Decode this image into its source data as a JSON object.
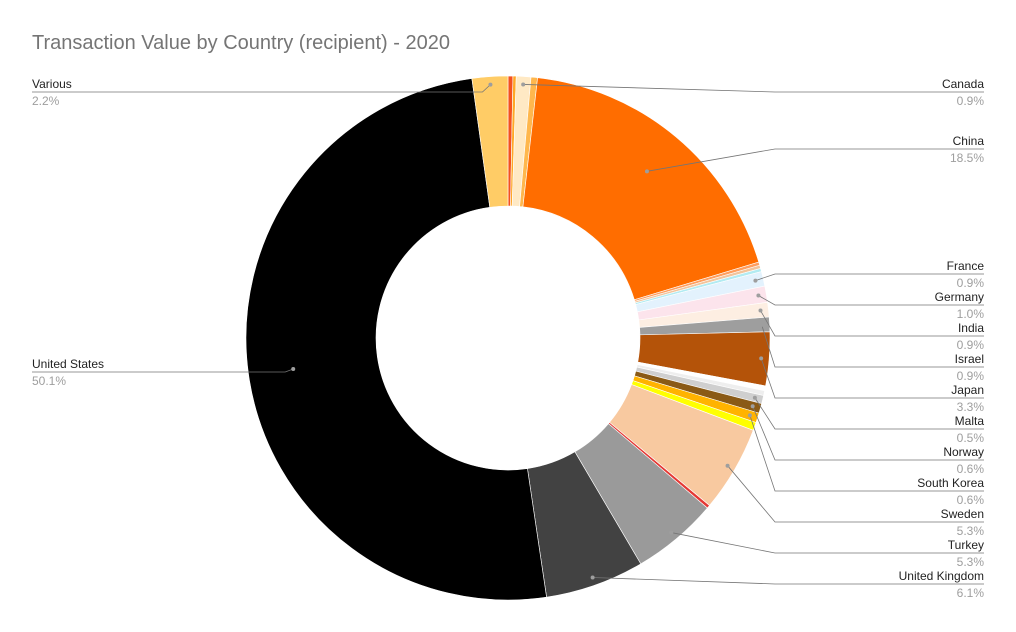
{
  "chart_data": {
    "type": "pie",
    "donut": true,
    "title": "Transaction Value by Country (recipient) - 2020",
    "slices": [
      {
        "label": "",
        "value": 0.3,
        "pct": "",
        "color": "#f4511e"
      },
      {
        "label": "",
        "value": 0.2,
        "pct": "",
        "color": "#ffa726"
      },
      {
        "label": "Canada",
        "value": 0.9,
        "pct": "0.9%",
        "color": "#ffe9c4"
      },
      {
        "label": "",
        "value": 0.4,
        "pct": "",
        "color": "#ffb74d"
      },
      {
        "label": "China",
        "value": 18.5,
        "pct": "18.5%",
        "color": "#ff6d00"
      },
      {
        "label": "",
        "value": 0.2,
        "pct": "",
        "color": "#ff9e5e"
      },
      {
        "label": "",
        "value": 0.2,
        "pct": "",
        "color": "#f2c49b"
      },
      {
        "label": "",
        "value": 0.2,
        "pct": "",
        "color": "#b2ebf2"
      },
      {
        "label": "France",
        "value": 0.9,
        "pct": "0.9%",
        "color": "#e3f2fd"
      },
      {
        "label": "Germany",
        "value": 1.0,
        "pct": "1.0%",
        "color": "#fce4ec"
      },
      {
        "label": "India",
        "value": 0.9,
        "pct": "0.9%",
        "color": "#fdeee2"
      },
      {
        "label": "Israel",
        "value": 0.9,
        "pct": "0.9%",
        "color": "#9e9e9e"
      },
      {
        "label": "Japan",
        "value": 3.3,
        "pct": "3.3%",
        "color": "#b45309"
      },
      {
        "label": "",
        "value": 0.3,
        "pct": "",
        "color": "#ffffff"
      },
      {
        "label": "",
        "value": 0.3,
        "pct": "",
        "color": "#eeeeee"
      },
      {
        "label": "Malta",
        "value": 0.5,
        "pct": "0.5%",
        "color": "#cfcfcf"
      },
      {
        "label": "Norway",
        "value": 0.6,
        "pct": "0.6%",
        "color": "#8a5a16"
      },
      {
        "label": "South Korea",
        "value": 0.6,
        "pct": "0.6%",
        "color": "#ffb300"
      },
      {
        "label": "",
        "value": 0.5,
        "pct": "",
        "color": "#ffff00"
      },
      {
        "label": "Sweden",
        "value": 5.3,
        "pct": "5.3%",
        "color": "#f8c9a0"
      },
      {
        "label": "",
        "value": 0.2,
        "pct": "",
        "color": "#e53935"
      },
      {
        "label": "Turkey",
        "value": 5.3,
        "pct": "5.3%",
        "color": "#9a9a9a"
      },
      {
        "label": "United Kingdom",
        "value": 6.1,
        "pct": "6.1%",
        "color": "#424242"
      },
      {
        "label": "United States",
        "value": 50.1,
        "pct": "50.1%",
        "color": "#000000"
      },
      {
        "label": "Various",
        "value": 2.2,
        "pct": "2.2%",
        "color": "#ffcc66"
      }
    ],
    "legend": "none",
    "label_style": "callout"
  }
}
